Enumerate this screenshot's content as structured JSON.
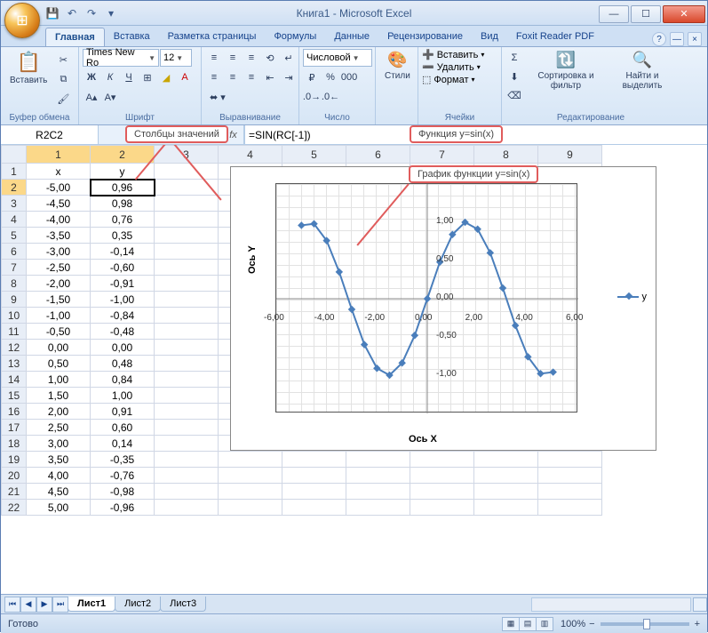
{
  "window": {
    "title": "Книга1 - Microsoft Excel",
    "qat_icons": [
      "save-icon",
      "undo-icon",
      "redo-icon",
      "dropdown-icon"
    ]
  },
  "ribbon": {
    "tabs": [
      "Главная",
      "Вставка",
      "Разметка страницы",
      "Формулы",
      "Данные",
      "Рецензирование",
      "Вид",
      "Foxit Reader PDF"
    ],
    "active_tab_index": 0,
    "groups": {
      "clipboard": {
        "label": "Буфер обмена",
        "paste": "Вставить"
      },
      "font": {
        "label": "Шрифт",
        "name": "Times New Ro",
        "size": "12"
      },
      "alignment": {
        "label": "Выравнивание"
      },
      "number": {
        "label": "Число",
        "format": "Числовой"
      },
      "styles": {
        "label": "",
        "styles_btn": "Стили"
      },
      "cells": {
        "label": "Ячейки",
        "insert": "Вставить",
        "delete": "Удалить",
        "format": "Формат"
      },
      "editing": {
        "label": "Редактирование",
        "sort": "Сортировка и фильтр",
        "find": "Найти и выделить"
      }
    }
  },
  "formula_bar": {
    "name_box": "R2C2",
    "fx": "fx",
    "formula": "=SIN(RC[-1])"
  },
  "annotations": {
    "columns": "Столбцы значений",
    "function": "Функция y=sin(x)",
    "chart": "График функции y=sin(x)"
  },
  "grid": {
    "col_headers": [
      "1",
      "2",
      "3",
      "4",
      "5",
      "6",
      "7",
      "8",
      "9"
    ],
    "row_headers": [
      "1",
      "2",
      "3",
      "4",
      "5",
      "6",
      "7",
      "8",
      "9",
      "10",
      "11",
      "12",
      "13",
      "14",
      "15",
      "16",
      "17",
      "18",
      "19",
      "20",
      "21",
      "22"
    ],
    "header_row": [
      "x",
      "y"
    ],
    "selected": {
      "row": 1,
      "col": 1
    },
    "data": [
      [
        "-5,00",
        "0,96"
      ],
      [
        "-4,50",
        "0,98"
      ],
      [
        "-4,00",
        "0,76"
      ],
      [
        "-3,50",
        "0,35"
      ],
      [
        "-3,00",
        "-0,14"
      ],
      [
        "-2,50",
        "-0,60"
      ],
      [
        "-2,00",
        "-0,91"
      ],
      [
        "-1,50",
        "-1,00"
      ],
      [
        "-1,00",
        "-0,84"
      ],
      [
        "-0,50",
        "-0,48"
      ],
      [
        "0,00",
        "0,00"
      ],
      [
        "0,50",
        "0,48"
      ],
      [
        "1,00",
        "0,84"
      ],
      [
        "1,50",
        "1,00"
      ],
      [
        "2,00",
        "0,91"
      ],
      [
        "2,50",
        "0,60"
      ],
      [
        "3,00",
        "0,14"
      ],
      [
        "3,50",
        "-0,35"
      ],
      [
        "4,00",
        "-0,76"
      ],
      [
        "4,50",
        "-0,98"
      ],
      [
        "5,00",
        "-0,96"
      ]
    ]
  },
  "chart": {
    "type": "line",
    "x_label": "Ось X",
    "y_label": "Ось Y",
    "legend": "y",
    "line_color": "#4a7ebb",
    "marker_shape": "diamond",
    "xlim": [
      -6,
      6
    ],
    "ylim": [
      -1.5,
      1.5
    ],
    "xticks": [
      -6,
      -4,
      -2,
      0,
      2,
      4,
      6
    ],
    "xtick_labels": [
      "-6,00",
      "-4,00",
      "-2,00",
      "0,00",
      "2,00",
      "4,00",
      "6,00"
    ],
    "yticks": [
      -1.5,
      -1.0,
      -0.5,
      0.0,
      0.5,
      1.0,
      1.5
    ],
    "ytick_labels": [
      "-1,50",
      "-1,00",
      "-0,50",
      "0,00",
      "0,50",
      "1,00",
      "1,50"
    ],
    "grid_color": "#e2e2e2",
    "background_color": "#ffffff",
    "series": {
      "x": [
        -5,
        -4.5,
        -4,
        -3.5,
        -3,
        -2.5,
        -2,
        -1.5,
        -1,
        -0.5,
        0,
        0.5,
        1,
        1.5,
        2,
        2.5,
        3,
        3.5,
        4,
        4.5,
        5
      ],
      "y": [
        0.96,
        0.98,
        0.76,
        0.35,
        -0.14,
        -0.6,
        -0.91,
        -1.0,
        -0.84,
        -0.48,
        0.0,
        0.48,
        0.84,
        1.0,
        0.91,
        0.6,
        0.14,
        -0.35,
        -0.76,
        -0.98,
        -0.96
      ]
    }
  },
  "sheet_tabs": {
    "tabs": [
      "Лист1",
      "Лист2",
      "Лист3"
    ],
    "active": 0
  },
  "status_bar": {
    "ready": "Готово",
    "zoom": "100%"
  },
  "colors": {
    "accent": "#4a7ebb",
    "annotation_border": "#e05c5c",
    "ribbon_bg": "#d7e6f6"
  }
}
